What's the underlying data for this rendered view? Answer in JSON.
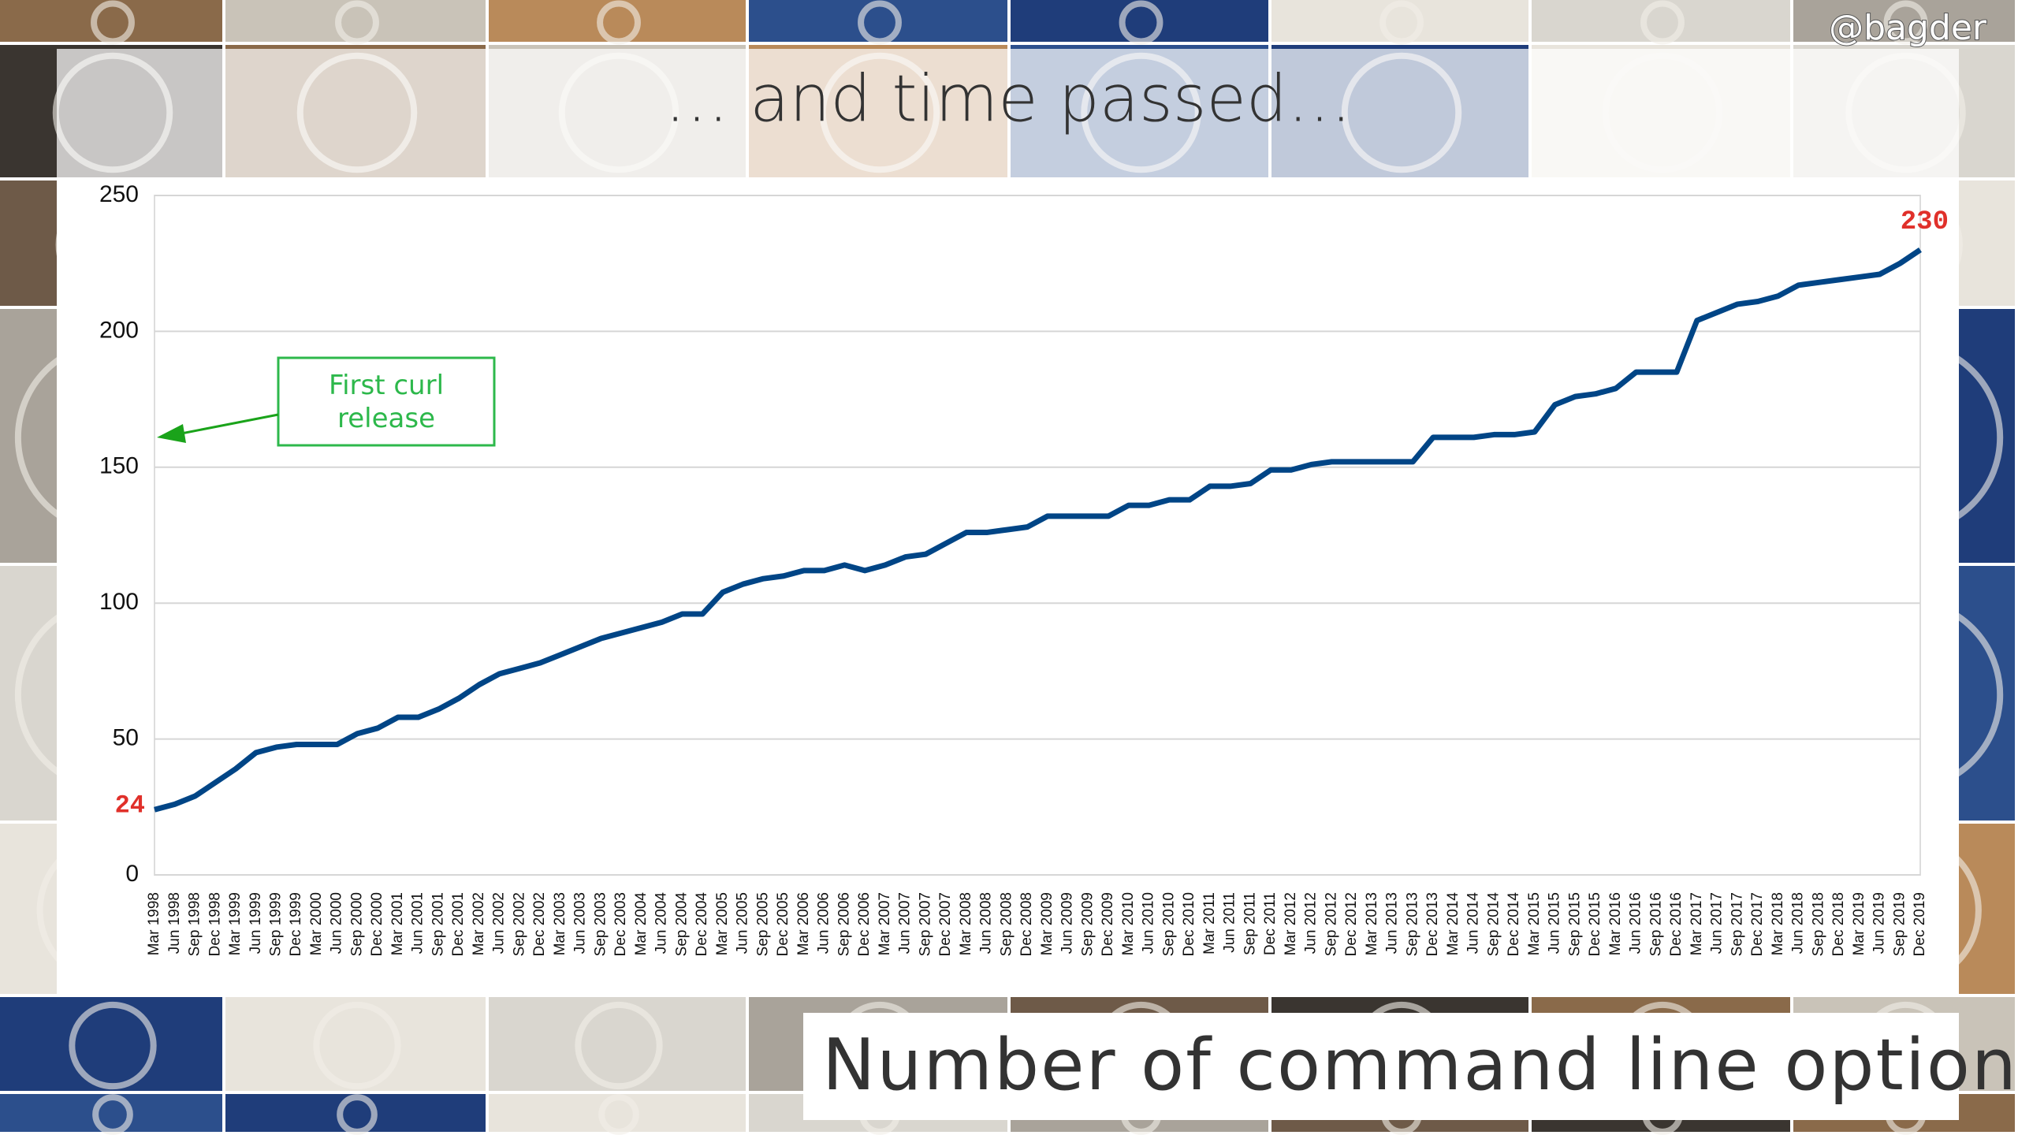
{
  "chart_data": {
    "type": "line",
    "title": "… and time passed…",
    "caption": "Number of command line options",
    "handle": "@bagder",
    "annotation": "First curl release",
    "categories": [
      "Mar 1998",
      "Jun 1998",
      "Sep 1998",
      "Dec 1998",
      "Mar 1999",
      "Jun 1999",
      "Sep 1999",
      "Dec 1999",
      "Mar 2000",
      "Jun 2000",
      "Sep 2000",
      "Dec 2000",
      "Mar 2001",
      "Jun 2001",
      "Sep 2001",
      "Dec 2001",
      "Mar 2002",
      "Jun 2002",
      "Sep 2002",
      "Dec 2002",
      "Mar 2003",
      "Jun 2003",
      "Sep 2003",
      "Dec 2003",
      "Mar 2004",
      "Jun 2004",
      "Sep 2004",
      "Dec 2004",
      "Mar 2005",
      "Jun 2005",
      "Sep 2005",
      "Dec 2005",
      "Mar 2006",
      "Jun 2006",
      "Sep 2006",
      "Dec 2006",
      "Mar 2007",
      "Jun 2007",
      "Sep 2007",
      "Dec 2007",
      "Mar 2008",
      "Jun 2008",
      "Sep 2008",
      "Dec 2008",
      "Mar 2009",
      "Jun 2009",
      "Sep 2009",
      "Dec 2009",
      "Mar 2010",
      "Jun 2010",
      "Sep 2010",
      "Dec 2010",
      "Mar 2011",
      "Jun 2011",
      "Sep 2011",
      "Dec 2011",
      "Mar 2012",
      "Jun 2012",
      "Sep 2012",
      "Dec 2012",
      "Mar 2013",
      "Jun 2013",
      "Sep 2013",
      "Dec 2013",
      "Mar 2014",
      "Jun 2014",
      "Sep 2014",
      "Dec 2014",
      "Mar 2015",
      "Jun 2015",
      "Sep 2015",
      "Dec 2015",
      "Mar 2016",
      "Jun 2016",
      "Sep 2016",
      "Dec 2016",
      "Mar 2017",
      "Jun 2017",
      "Sep 2017",
      "Dec 2017",
      "Mar 2018",
      "Jun 2018",
      "Sep 2018",
      "Dec 2018",
      "Mar 2019",
      "Jun 2019",
      "Sep 2019",
      "Dec 2019"
    ],
    "values": [
      24,
      26,
      29,
      34,
      39,
      45,
      47,
      48,
      48,
      48,
      52,
      54,
      58,
      58,
      61,
      65,
      70,
      74,
      76,
      78,
      81,
      84,
      87,
      89,
      91,
      93,
      96,
      96,
      104,
      107,
      109,
      110,
      112,
      112,
      114,
      112,
      114,
      117,
      118,
      122,
      126,
      126,
      127,
      128,
      132,
      132,
      132,
      132,
      136,
      136,
      138,
      138,
      143,
      143,
      144,
      149,
      149,
      151,
      152,
      152,
      152,
      152,
      152,
      161,
      161,
      161,
      162,
      162,
      163,
      173,
      176,
      177,
      179,
      185,
      185,
      185,
      204,
      207,
      210,
      211,
      213,
      217,
      218,
      219,
      220,
      221,
      225,
      230
    ],
    "color": "#004586",
    "label_color": "#e0302a",
    "ylim": [
      0,
      250
    ],
    "yticks": [
      0,
      50,
      100,
      150,
      200,
      250
    ],
    "grid": true
  }
}
